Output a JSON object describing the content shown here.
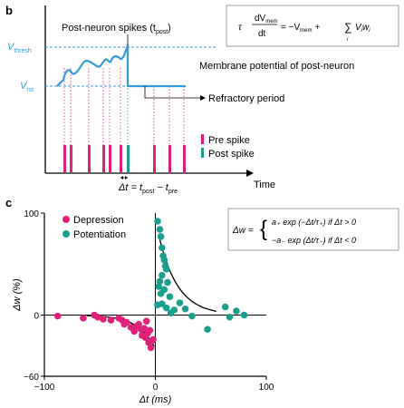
{
  "panel_b": {
    "label": "b",
    "y_label_thresh": "V",
    "y_label_thresh_sub": "thresh",
    "y_label_rst": "V",
    "y_label_rst_sub": "rst",
    "spike_annotation": "Post-neuron spikes (t",
    "spike_annotation_sub": "post",
    "spike_annotation_end": ")",
    "membrane_label": "Membrane potential of post-neuron",
    "refractory_label": "Refractory period",
    "legend_pre": "Pre spike",
    "legend_post": "Post spike",
    "x_label": "Time",
    "delta_t_prefix": "Δt = t",
    "delta_t_sub1": "post",
    "delta_t_mid": " − t",
    "delta_t_sub2": "pre",
    "equation": {
      "tau": "τ",
      "dv_num": "dV",
      "dv_num_sub": "mem",
      "dv_den": "dt",
      "rhs_start": "= −V",
      "rhs_sub": "mem",
      "rhs_plus": "+",
      "sum_sym": "∑",
      "sum_sub": "i",
      "rhs_term": "V",
      "term_sub1": "i",
      "rhs_w": "w",
      "term_sub2": "i"
    },
    "colors": {
      "pre": "#e0217a",
      "post": "#1a9e8e",
      "trace": "#3399d9"
    }
  },
  "panel_c": {
    "label": "c",
    "legend_depression": "Depression",
    "legend_potentiation": "Potentiation",
    "formula_lhs": "Δw =",
    "formula_line1": "a₊ exp (−Δt/τ₊) if Δt > 0",
    "formula_line2": "−a₋ exp (Δt/τ₋) if Δt < 0",
    "colors": {
      "depression": "#e0217a",
      "potentiation": "#1a9e8e"
    }
  },
  "chart_data": {
    "type": "scatter",
    "title": "",
    "xlabel": "Δt (ms)",
    "ylabel": "Δw (%)",
    "xlim": [
      -100,
      100
    ],
    "ylim": [
      -60,
      100
    ],
    "x_ticks": [
      "−100",
      "0",
      "100"
    ],
    "y_ticks": [
      "100",
      "0",
      "−60"
    ],
    "series": [
      {
        "name": "Depression",
        "color": "#e0217a",
        "points": [
          [
            -88,
            -1
          ],
          [
            -65,
            -3
          ],
          [
            -55,
            0
          ],
          [
            -52,
            -2
          ],
          [
            -47,
            -4
          ],
          [
            -40,
            -5
          ],
          [
            -33,
            -3
          ],
          [
            -30,
            -5
          ],
          [
            -28,
            -9
          ],
          [
            -26,
            -7
          ],
          [
            -22,
            -12
          ],
          [
            -19,
            -16
          ],
          [
            -17,
            -11
          ],
          [
            -15,
            -9
          ],
          [
            -13,
            -14
          ],
          [
            -12,
            -20
          ],
          [
            -10,
            -13
          ],
          [
            -9,
            -22
          ],
          [
            -8,
            -6
          ],
          [
            -7,
            -18
          ],
          [
            -6,
            -27
          ],
          [
            -5,
            -15
          ],
          [
            -4,
            -32
          ],
          [
            -3,
            -25
          ],
          [
            -2,
            -24
          ]
        ]
      },
      {
        "name": "Potentiation",
        "color": "#1a9e8e",
        "points": [
          [
            2,
            92
          ],
          [
            4,
            84
          ],
          [
            5,
            77
          ],
          [
            6,
            66
          ],
          [
            7,
            58
          ],
          [
            8,
            54
          ],
          [
            9,
            48
          ],
          [
            10,
            45
          ],
          [
            6,
            39
          ],
          [
            4,
            33
          ],
          [
            11,
            32
          ],
          [
            3,
            28
          ],
          [
            8,
            25
          ],
          [
            5,
            21
          ],
          [
            13,
            18
          ],
          [
            2,
            10
          ],
          [
            6,
            11
          ],
          [
            10,
            7
          ],
          [
            14,
            2
          ],
          [
            17,
            5
          ],
          [
            22,
            12
          ],
          [
            27,
            6
          ],
          [
            33,
            -1
          ],
          [
            47,
            -14
          ],
          [
            63,
            8
          ],
          [
            67,
            -2
          ],
          [
            73,
            4
          ],
          [
            80,
            0
          ]
        ]
      }
    ]
  }
}
